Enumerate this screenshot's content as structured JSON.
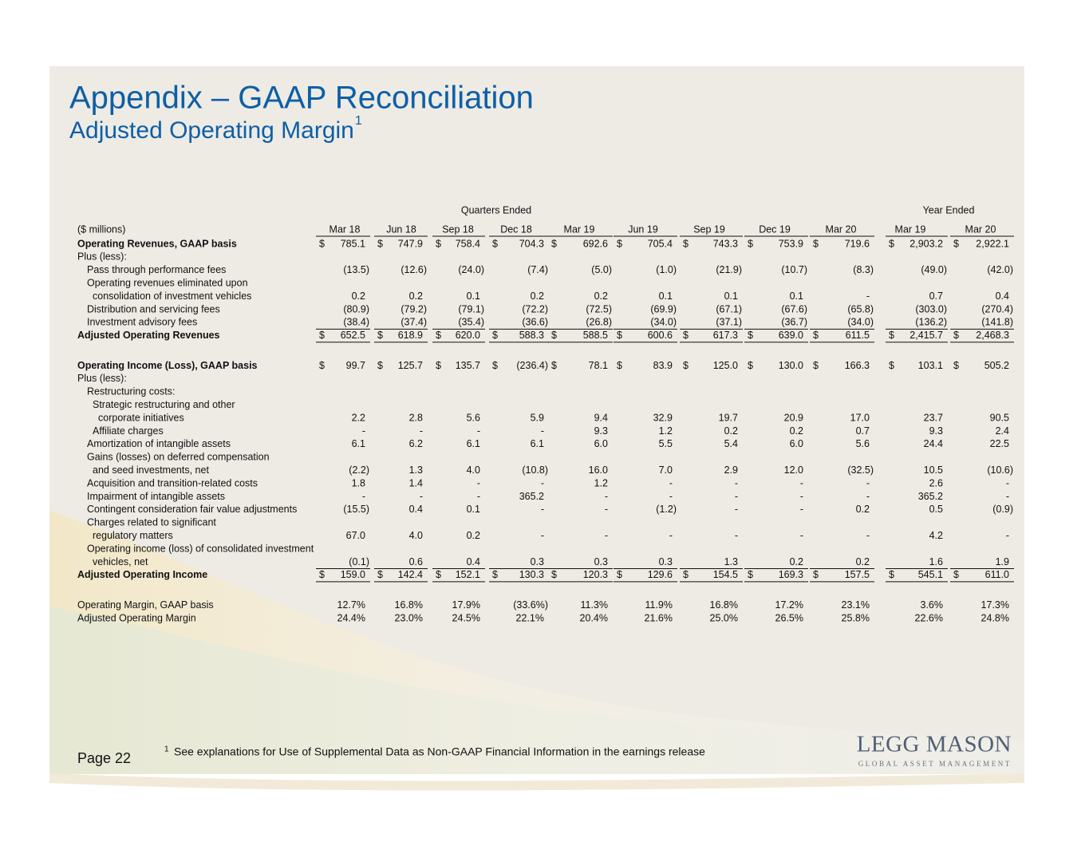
{
  "header": {
    "title": "Appendix – GAAP Reconciliation",
    "subtitle": "Adjusted Operating Margin",
    "subtitle_note": "1"
  },
  "table": {
    "group_headers": [
      "Quarters Ended",
      "Year Ended"
    ],
    "units_label": "($ millions)",
    "currency_symbol": "$",
    "columns": [
      "Mar 18",
      "Jun 18",
      "Sep 18",
      "Dec 18",
      "Mar 19",
      "Jun 19",
      "Sep 19",
      "Dec 19",
      "Mar 20",
      "Mar 19",
      "Mar 20"
    ],
    "rows": [
      {
        "label": "Operating Revenues, GAAP basis",
        "bold": true,
        "dollar": true,
        "level": 0,
        "values": [
          "785.1",
          "747.9",
          "758.4",
          "704.3",
          "692.6",
          "705.4",
          "743.3",
          "753.9",
          "719.6",
          "2,903.2",
          "2,922.1"
        ]
      },
      {
        "label": "Plus (less):",
        "level": 0
      },
      {
        "label": "Pass through performance fees",
        "level": 1,
        "values": [
          "(13.5)",
          "(12.6)",
          "(24.0)",
          "(7.4)",
          "(5.0)",
          "(1.0)",
          "(21.9)",
          "(10.7)",
          "(8.3)",
          "(49.0)",
          "(42.0)"
        ]
      },
      {
        "label": "Operating revenues eliminated upon",
        "level": 1
      },
      {
        "label": "consolidation of investment vehicles",
        "level": 2,
        "values": [
          "0.2",
          "0.2",
          "0.1",
          "0.2",
          "0.2",
          "0.1",
          "0.1",
          "0.1",
          "-",
          "0.7",
          "0.4"
        ]
      },
      {
        "label": "Distribution and servicing fees",
        "level": 1,
        "values": [
          "(80.9)",
          "(79.2)",
          "(79.1)",
          "(72.2)",
          "(72.5)",
          "(69.9)",
          "(67.1)",
          "(67.6)",
          "(65.8)",
          "(303.0)",
          "(270.4)"
        ]
      },
      {
        "label": "Investment advisory fees",
        "level": 1,
        "rule_below": true,
        "values": [
          "(38.4)",
          "(37.4)",
          "(35.4)",
          "(36.6)",
          "(26.8)",
          "(34.0)",
          "(37.1)",
          "(36.7)",
          "(34.0)",
          "(136.2)",
          "(141.8)"
        ]
      },
      {
        "label": "Adjusted Operating Revenues",
        "bold": true,
        "dollar": true,
        "level": 0,
        "rule_below": true,
        "values": [
          "652.5",
          "618.9",
          "620.0",
          "588.3",
          "588.5",
          "600.6",
          "617.3",
          "639.0",
          "611.5",
          "2,415.7",
          "2,468.3"
        ]
      },
      {
        "label": "Operating Income (Loss), GAAP basis",
        "bold": true,
        "dollar": true,
        "level": 0,
        "gap_before": true,
        "values": [
          "99.7",
          "125.7",
          "135.7",
          "(236.4)",
          "78.1",
          "83.9",
          "125.0",
          "130.0",
          "166.3",
          "103.1",
          "505.2"
        ]
      },
      {
        "label": "Plus (less):",
        "level": 0
      },
      {
        "label": "Restructuring costs:",
        "level": 1
      },
      {
        "label": "Strategic restructuring and other",
        "level": 2
      },
      {
        "label": "corporate initiatives",
        "level": 3,
        "values": [
          "2.2",
          "2.8",
          "5.6",
          "5.9",
          "9.4",
          "32.9",
          "19.7",
          "20.9",
          "17.0",
          "23.7",
          "90.5"
        ]
      },
      {
        "label": "Affiliate charges",
        "level": 2,
        "values": [
          "-",
          "-",
          "-",
          "-",
          "9.3",
          "1.2",
          "0.2",
          "0.2",
          "0.7",
          "9.3",
          "2.4"
        ]
      },
      {
        "label": "Amortization of intangible assets",
        "level": 1,
        "values": [
          "6.1",
          "6.2",
          "6.1",
          "6.1",
          "6.0",
          "5.5",
          "5.4",
          "6.0",
          "5.6",
          "24.4",
          "22.5"
        ]
      },
      {
        "label": "Gains (losses) on deferred compensation",
        "level": 1
      },
      {
        "label": "and seed investments, net",
        "level": 2,
        "values": [
          "(2.2)",
          "1.3",
          "4.0",
          "(10.8)",
          "16.0",
          "7.0",
          "2.9",
          "12.0",
          "(32.5)",
          "10.5",
          "(10.6)"
        ]
      },
      {
        "label": "Acquisition and transition-related costs",
        "level": 1,
        "values": [
          "1.8",
          "1.4",
          "-",
          "-",
          "1.2",
          "-",
          "-",
          "-",
          "-",
          "2.6",
          "-"
        ]
      },
      {
        "label": "Impairment of intangible assets",
        "level": 1,
        "values": [
          "-",
          "-",
          "-",
          "365.2",
          "-",
          "-",
          "-",
          "-",
          "-",
          "365.2",
          "-"
        ]
      },
      {
        "label": "Contingent consideration fair value adjustments",
        "level": 1,
        "values": [
          "(15.5)",
          "0.4",
          "0.1",
          "-",
          "-",
          "(1.2)",
          "-",
          "-",
          "0.2",
          "0.5",
          "(0.9)"
        ]
      },
      {
        "label": "Charges related to significant",
        "level": 1
      },
      {
        "label": "regulatory matters",
        "level": 2,
        "values": [
          "67.0",
          "4.0",
          "0.2",
          "-",
          "-",
          "-",
          "-",
          "-",
          "-",
          "4.2",
          "-"
        ]
      },
      {
        "label": "Operating income (loss) of consolidated investment",
        "level": 1
      },
      {
        "label": "vehicles, net",
        "level": 2,
        "rule_below": true,
        "values": [
          "(0.1)",
          "0.6",
          "0.4",
          "0.3",
          "0.3",
          "0.3",
          "1.3",
          "0.2",
          "0.2",
          "1.6",
          "1.9"
        ]
      },
      {
        "label": "Adjusted Operating Income",
        "bold": true,
        "dollar": true,
        "level": 0,
        "rule_below": true,
        "values": [
          "159.0",
          "142.4",
          "152.1",
          "130.3",
          "120.3",
          "129.6",
          "154.5",
          "169.3",
          "157.5",
          "545.1",
          "611.0"
        ]
      },
      {
        "label": "Operating Margin, GAAP basis",
        "level": 0,
        "gap_before": true,
        "values": [
          "12.7%",
          "16.8%",
          "17.9%",
          "(33.6%)",
          "11.3%",
          "11.9%",
          "16.8%",
          "17.2%",
          "23.1%",
          "3.6%",
          "17.3%"
        ]
      },
      {
        "label": "Adjusted Operating Margin",
        "level": 0,
        "values": [
          "24.4%",
          "23.0%",
          "24.5%",
          "22.1%",
          "20.4%",
          "21.6%",
          "25.0%",
          "26.5%",
          "25.8%",
          "22.6%",
          "24.8%"
        ]
      }
    ]
  },
  "footer": {
    "page": "Page 22",
    "footnote_mark": "1",
    "footnote": "See explanations for Use of Supplemental Data as Non-GAAP Financial Information in the earnings release",
    "logo": "LEGG MASON",
    "logo_tagline": "GLOBAL ASSET MANAGEMENT"
  }
}
